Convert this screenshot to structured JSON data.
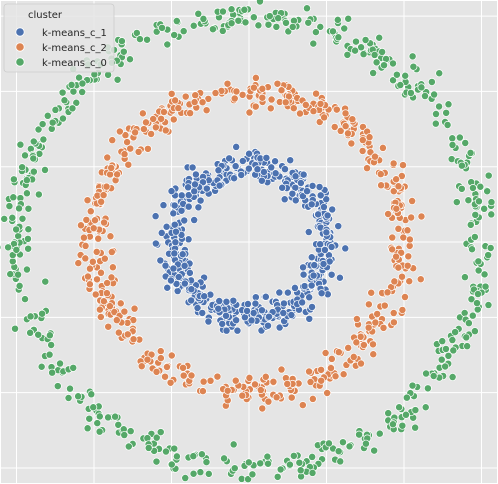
{
  "chart_data": {
    "type": "scatter",
    "title": "",
    "xlabel": "",
    "ylabel": "",
    "xlim": [
      -1.6,
      1.6
    ],
    "ylim": [
      -1.6,
      1.6
    ],
    "grid": true,
    "background": "#e5e5e5",
    "legend": {
      "title": "cluster",
      "placement": "top-left",
      "entries": [
        {
          "name": "k-means_c_1",
          "color": "#4c72b0"
        },
        {
          "name": "k-means_c_2",
          "color": "#dd8452"
        },
        {
          "name": "k-means_c_0",
          "color": "#55a868"
        }
      ]
    },
    "series": [
      {
        "name": "k-means_c_1",
        "color": "#4c72b0",
        "ring_radius": 0.5,
        "noise": 0.05,
        "point_count": 550
      },
      {
        "name": "k-means_c_2",
        "color": "#dd8452",
        "ring_radius": 1.0,
        "noise": 0.05,
        "point_count": 550
      },
      {
        "name": "k-means_c_0",
        "color": "#55a868",
        "ring_radius": 1.5,
        "noise": 0.05,
        "point_count": 550
      }
    ]
  }
}
